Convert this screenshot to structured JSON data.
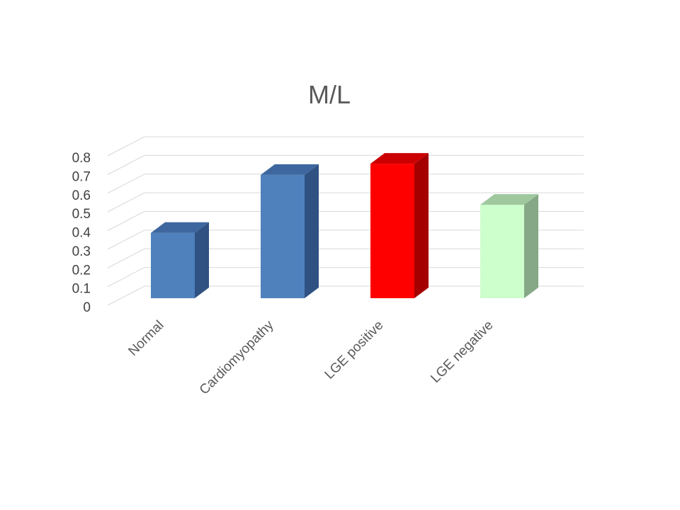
{
  "chart_data": {
    "type": "bar",
    "title": "M/L",
    "xlabel": "",
    "ylabel": "",
    "categories": [
      "Normal",
      "Cardiomyopathy",
      "LGE positive",
      "LGE negative"
    ],
    "values": [
      0.35,
      0.66,
      0.72,
      0.5
    ],
    "ylim": [
      0,
      0.8
    ],
    "yticks": [
      "0",
      "0.1",
      "0.2",
      "0.3",
      "0.4",
      "0.5",
      "0.6",
      "0.7",
      "0.8"
    ],
    "grid": true,
    "legend": "none",
    "style": "3d-column",
    "bar_colors": [
      {
        "front": "#4f81bd",
        "side": "#2f5283",
        "top": "#3d679e"
      },
      {
        "front": "#4f81bd",
        "side": "#2f5283",
        "top": "#3d679e"
      },
      {
        "front": "#ff0000",
        "side": "#a50000",
        "top": "#cc0000"
      },
      {
        "front": "#ccffcc",
        "side": "#86a886",
        "top": "#9fc89f"
      }
    ]
  }
}
